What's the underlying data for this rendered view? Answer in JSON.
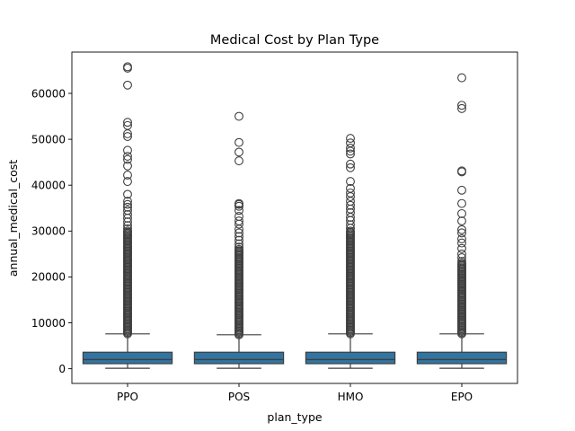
{
  "chart_data": {
    "type": "box",
    "title": "Medical Cost by Plan Type",
    "xlabel": "plan_type",
    "ylabel": "annual_medical_cost",
    "ylim": [
      -3200,
      69000
    ],
    "yticks": [
      0,
      10000,
      20000,
      30000,
      40000,
      50000,
      60000
    ],
    "ytick_labels": [
      "0",
      "10000",
      "20000",
      "30000",
      "40000",
      "50000",
      "60000"
    ],
    "grid": false,
    "box_color": "#3274a1",
    "line_color": "#3f3f3f",
    "categories": [
      "PPO",
      "POS",
      "HMO",
      "EPO"
    ],
    "boxes": [
      {
        "category": "PPO",
        "whislo": 100,
        "q1": 1100,
        "med": 2000,
        "q3": 3600,
        "whishi": 7600,
        "dense_outliers": [
          7600,
          30000
        ],
        "outliers": [
          30500,
          31200,
          32000,
          32800,
          33600,
          34500,
          35200,
          35800,
          36500,
          38000,
          40800,
          42200,
          44200,
          45600,
          46300,
          47600,
          50600,
          51200,
          53000,
          53700,
          61800,
          65500,
          65800
        ]
      },
      {
        "category": "POS",
        "whislo": 100,
        "q1": 1100,
        "med": 2000,
        "q3": 3600,
        "whishi": 7400,
        "dense_outliers": [
          7400,
          26000
        ],
        "outliers": [
          26500,
          27200,
          28000,
          28800,
          29600,
          30400,
          31500,
          32200,
          33200,
          34500,
          35400,
          35800,
          36000,
          45300,
          47200,
          49300,
          55000
        ]
      },
      {
        "category": "HMO",
        "whislo": 100,
        "q1": 1100,
        "med": 2000,
        "q3": 3600,
        "whishi": 7600,
        "dense_outliers": [
          7600,
          30000
        ],
        "outliers": [
          30600,
          31400,
          32300,
          33000,
          34000,
          34800,
          35600,
          36500,
          37500,
          38300,
          39300,
          40800,
          43800,
          44600,
          46800,
          47400,
          48100,
          49200,
          50200
        ]
      },
      {
        "category": "EPO",
        "whislo": 100,
        "q1": 1100,
        "med": 2000,
        "q3": 3600,
        "whishi": 7600,
        "dense_outliers": [
          7600,
          23000
        ],
        "outliers": [
          23400,
          24200,
          25000,
          26200,
          27400,
          28300,
          29600,
          30300,
          32200,
          33800,
          36000,
          38900,
          42900,
          43100,
          56700,
          57400,
          63400
        ]
      }
    ]
  }
}
